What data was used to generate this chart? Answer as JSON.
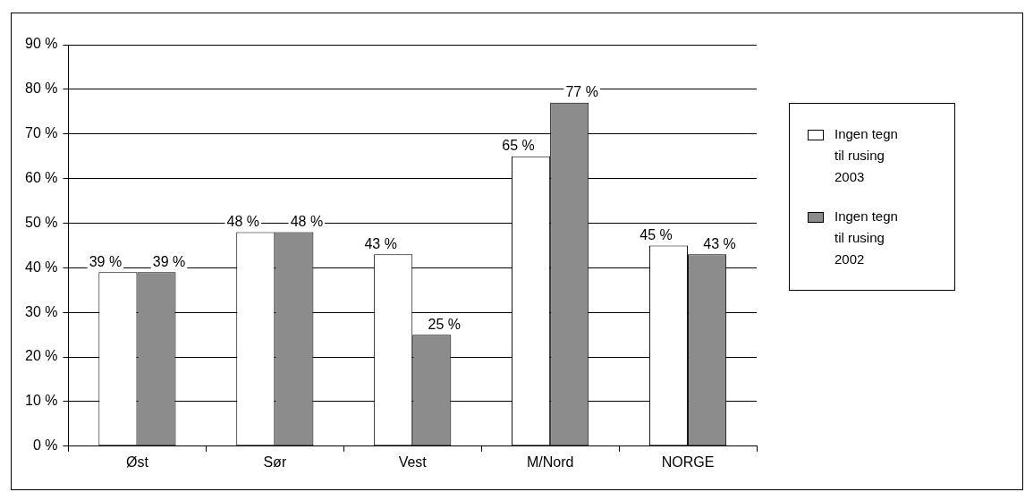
{
  "chart_data": {
    "type": "bar",
    "categories": [
      "Øst",
      "Sør",
      "Vest",
      "M/Nord",
      "NORGE"
    ],
    "series": [
      {
        "name": "Ingen tegn til rusing 2003",
        "color": "#ffffff",
        "values": [
          39,
          48,
          43,
          65,
          45
        ],
        "value_labels": [
          "39 %",
          "48 %",
          "43 %",
          "65 %",
          "45 %"
        ]
      },
      {
        "name": "Ingen tegn til rusing 2002",
        "color": "#8c8c8c",
        "values": [
          39,
          48,
          25,
          77,
          43
        ],
        "value_labels": [
          "39 %",
          "48 %",
          "25 %",
          "77 %",
          "43 %"
        ]
      }
    ],
    "ylim": [
      0,
      90
    ],
    "yticks": [
      {
        "value": 0,
        "label": "0 %"
      },
      {
        "value": 10,
        "label": "10 %"
      },
      {
        "value": 20,
        "label": "20 %"
      },
      {
        "value": 30,
        "label": "30 %"
      },
      {
        "value": 40,
        "label": "40 %"
      },
      {
        "value": 50,
        "label": "50 %"
      },
      {
        "value": 60,
        "label": "60 %"
      },
      {
        "value": 70,
        "label": "70 %"
      },
      {
        "value": 80,
        "label": "80 %"
      },
      {
        "value": 90,
        "label": "90 %"
      }
    ],
    "grid": "y",
    "legend": "right"
  }
}
